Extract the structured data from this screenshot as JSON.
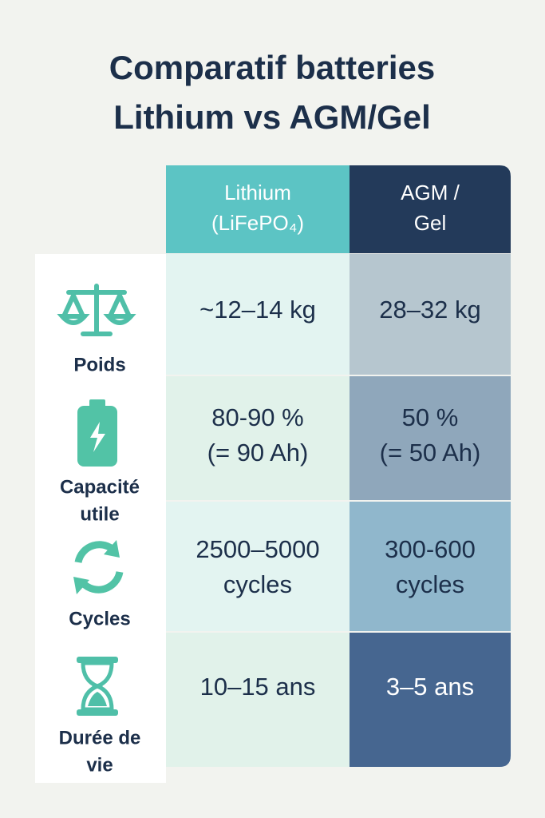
{
  "title": [
    "Comparatif batteries",
    "Lithium vs AGM/Gel"
  ],
  "table": {
    "header": [
      [
        "Lithium",
        "(LiFePO₄)"
      ],
      [
        "AGM /",
        "Gel"
      ]
    ],
    "rows": [
      {
        "label": [
          "Poids"
        ],
        "cells": [
          [
            "~12–14 kg"
          ],
          [
            "28–32 kg"
          ]
        ]
      },
      {
        "label": [
          "Capacité",
          "utile"
        ],
        "cells": [
          [
            "80-90 %",
            "(= 90 Ah)"
          ],
          [
            "50 %",
            "(= 50 Ah)"
          ]
        ]
      },
      {
        "label": [
          "Cycles"
        ],
        "cells": [
          [
            "2500–5000",
            "cycles"
          ],
          [
            "300-600",
            "cycles"
          ]
        ]
      },
      {
        "label": [
          "Durée de",
          "vie"
        ],
        "cells": [
          [
            "10–15 ans"
          ],
          [
            "3–5 ans"
          ]
        ]
      }
    ]
  }
}
